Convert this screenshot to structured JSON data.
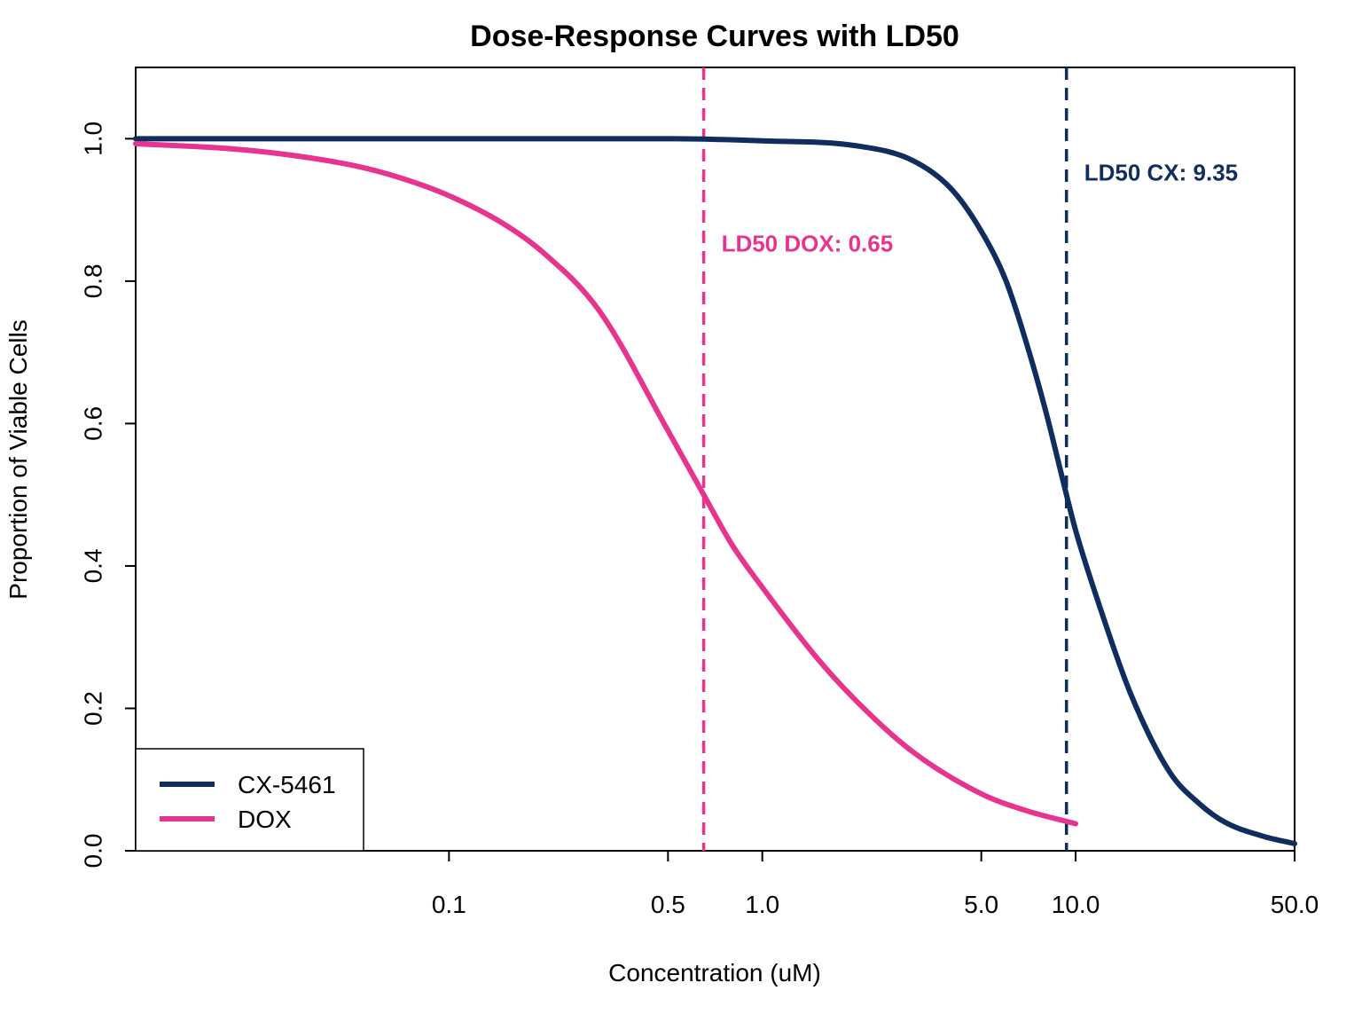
{
  "colors": {
    "cx": "#0f2d5e",
    "dox": "#e6348f",
    "axis": "#000000",
    "background": "#ffffff"
  },
  "chart_data": {
    "type": "line",
    "title": "Dose-Response Curves with LD50",
    "xlabel": "Concentration (uM)",
    "ylabel": "Proportion of Viable Cells",
    "x_scale": "log",
    "xlim": [
      0.01,
      50
    ],
    "ylim": [
      0,
      1.1
    ],
    "x_ticks": [
      0.1,
      0.5,
      1.0,
      5.0,
      10.0,
      50.0
    ],
    "x_tick_labels": [
      "0.1",
      "0.5",
      "1.0",
      "5.0",
      "10.0",
      "50.0"
    ],
    "y_ticks": [
      0,
      0.2,
      0.4,
      0.6,
      0.8,
      1.0
    ],
    "y_tick_labels": [
      "0.0",
      "0.2",
      "0.4",
      "0.6",
      "0.8",
      "1.0"
    ],
    "grid": false,
    "legend_position": "bottom-left",
    "series": [
      {
        "name": "CX-5461",
        "color": "#0f2d5e",
        "x": [
          0.01,
          0.1,
          0.5,
          1.0,
          2.0,
          3.0,
          4.0,
          5.0,
          6.0,
          7.0,
          8.0,
          9.35,
          10.0,
          12.0,
          15.0,
          20.0,
          25.0,
          30.0,
          40.0,
          50.0
        ],
        "y": [
          1.0,
          1.0,
          1.0,
          0.997,
          0.99,
          0.97,
          0.93,
          0.87,
          0.8,
          0.71,
          0.62,
          0.5,
          0.45,
          0.34,
          0.22,
          0.11,
          0.065,
          0.04,
          0.02,
          0.01
        ]
      },
      {
        "name": "DOX",
        "color": "#e6348f",
        "x": [
          0.01,
          0.02,
          0.03,
          0.05,
          0.07,
          0.1,
          0.15,
          0.2,
          0.3,
          0.5,
          0.65,
          0.8,
          1.0,
          1.5,
          2.0,
          3.0,
          5.0,
          7.0,
          10.0
        ],
        "y": [
          0.993,
          0.986,
          0.978,
          0.962,
          0.945,
          0.92,
          0.88,
          0.84,
          0.76,
          0.59,
          0.5,
          0.43,
          0.37,
          0.27,
          0.21,
          0.14,
          0.08,
          0.056,
          0.038
        ]
      }
    ],
    "reference_lines": [
      {
        "x": 0.65,
        "color": "#e6348f",
        "style": "dashed",
        "label": "LD50 DOX: 0.65",
        "label_y": 0.85
      },
      {
        "x": 9.35,
        "color": "#0f2d5e",
        "style": "dashed",
        "label": "LD50 CX: 9.35",
        "label_y": 0.95
      }
    ]
  }
}
